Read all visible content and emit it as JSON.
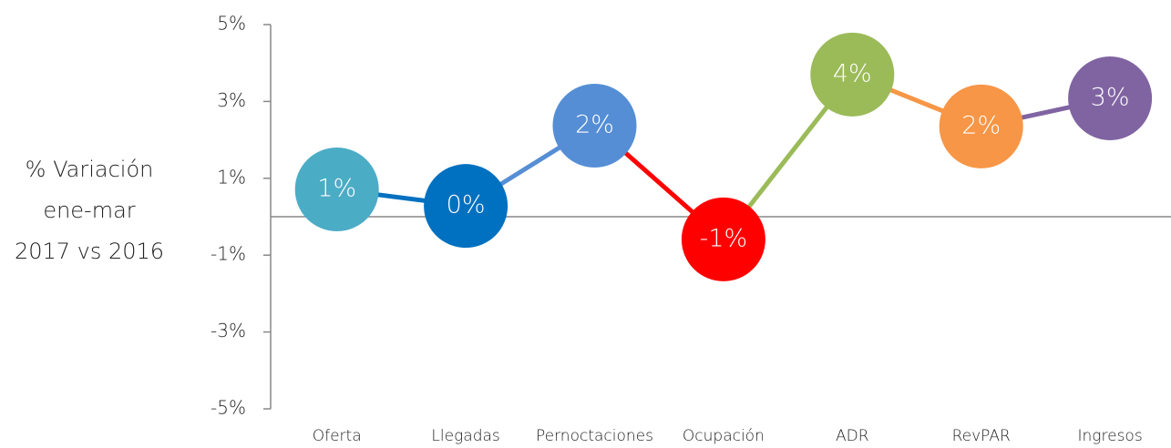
{
  "chart_data": {
    "type": "line",
    "y_label": [
      "% Variación",
      "ene-mar",
      "2017 vs 2016"
    ],
    "categories": [
      "Oferta",
      "Llegadas",
      "Pernoctaciones",
      "Ocupación",
      "ADR",
      "RevPAR",
      "Ingresos"
    ],
    "values": [
      0.71,
      0.28,
      2.37,
      -0.59,
      3.7,
      2.35,
      3.08
    ],
    "value_labels": [
      "1%",
      "0%",
      "2%",
      "-1%",
      "4%",
      "2%",
      "3%"
    ],
    "colors": [
      "#4bacc6",
      "#0070c0",
      "#558ed5",
      "#ff0000",
      "#9bbb59",
      "#f79646",
      "#8064a2"
    ],
    "ylim": [
      -5,
      5
    ],
    "yticks": [
      {
        "value": -5,
        "label": "-5%"
      },
      {
        "value": -3,
        "label": "-3%"
      },
      {
        "value": -1,
        "label": "-1%"
      },
      {
        "value": 1,
        "label": "1%"
      },
      {
        "value": 3,
        "label": "3%"
      },
      {
        "value": 5,
        "label": "5%"
      }
    ]
  }
}
